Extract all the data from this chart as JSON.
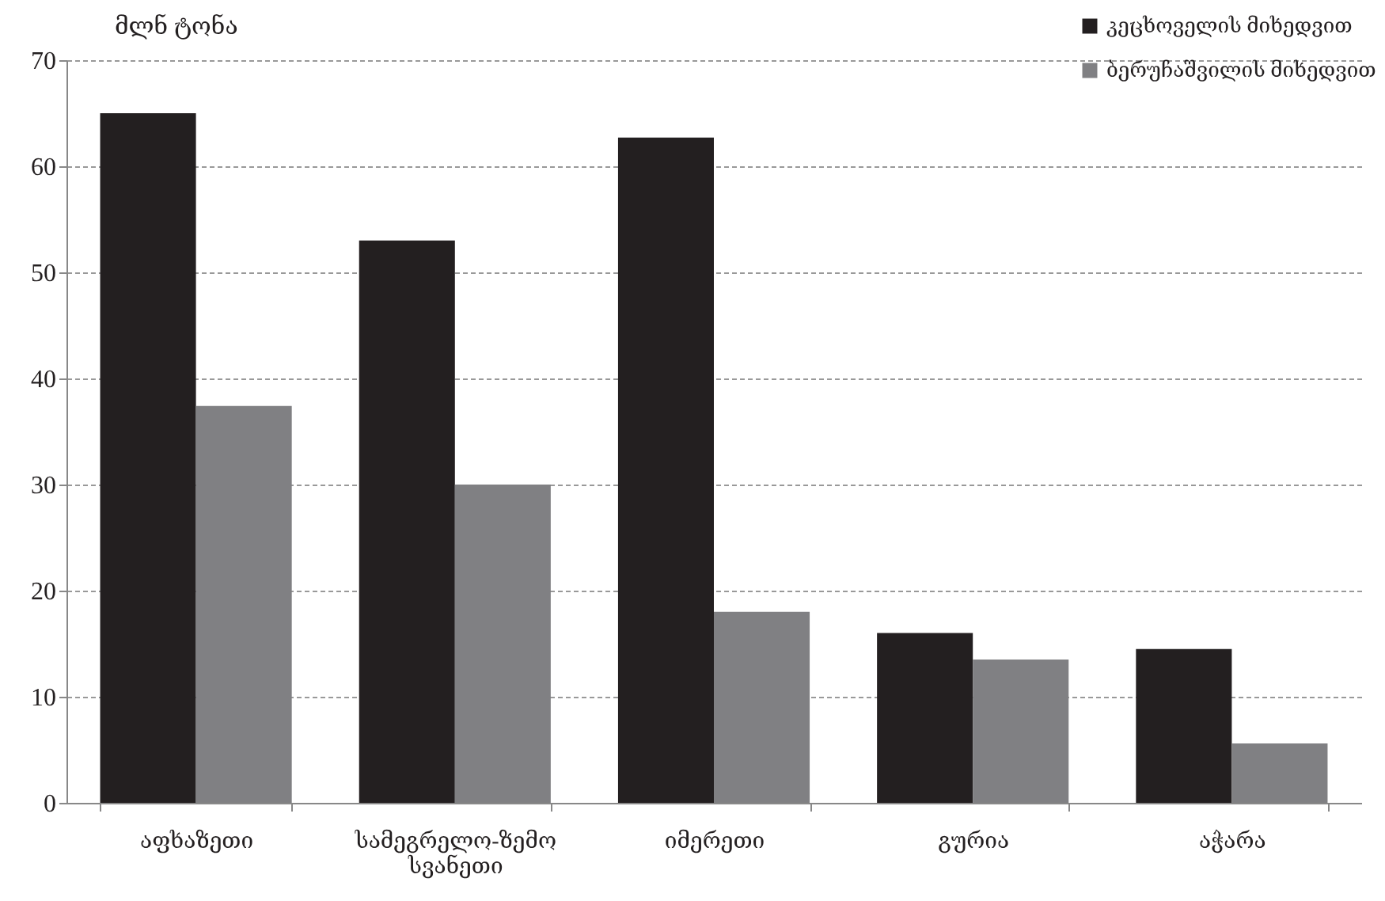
{
  "chart_data": {
    "type": "bar",
    "ylabel": "მლნ ტონა",
    "categories": [
      "აფხაზეთი",
      "სამეგრელო-ზემო სვანეთი",
      "იმერეთი",
      "გურია",
      "აჭარა"
    ],
    "series": [
      {
        "name": "კეცხოველის მიხედვით",
        "color": "#231f20",
        "values": [
          65,
          53,
          62.7,
          16,
          14.5
        ]
      },
      {
        "name": "ბერუჩაშვილის მიხედვით",
        "color": "#808083",
        "values": [
          37.4,
          30,
          18,
          13.5,
          5.6
        ]
      }
    ],
    "ylim": [
      0,
      70
    ],
    "yticks": [
      0,
      10,
      20,
      30,
      40,
      50,
      60,
      70
    ],
    "grid": "y",
    "legend": "top right"
  }
}
